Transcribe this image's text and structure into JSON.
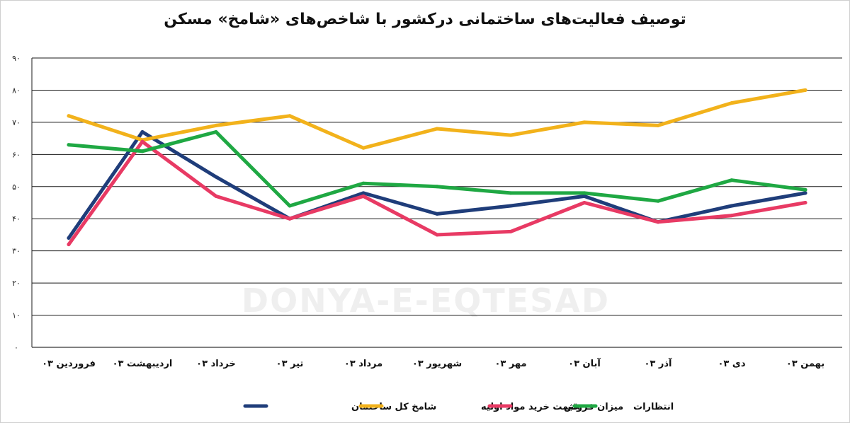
{
  "chart_data": {
    "type": "line",
    "title": "توصیف فعالیت‌های ساختمانی درکشور با شاخص‌های «شامخ» مسکن",
    "categories": [
      "فروردین ۰۳",
      "اردیبهشت ۰۳",
      "خرداد ۰۳",
      "تیر ۰۳",
      "مرداد ۰۳",
      "شهریور ۰۳",
      "مهر ۰۳",
      "آبان ۰۳",
      "آذر ۰۳",
      "دی ۰۳",
      "بهمن ۰۳"
    ],
    "ylim": [
      0,
      90
    ],
    "yticks": [
      0,
      10,
      20,
      30,
      40,
      50,
      60,
      70,
      80,
      90
    ],
    "ytick_labels": [
      "۰",
      "۱۰",
      "۲۰",
      "۳۰",
      "۴۰",
      "۵۰",
      "۶۰",
      "۷۰",
      "۸۰",
      "۹۰"
    ],
    "grid": true,
    "legend_position": "bottom",
    "series": [
      {
        "name": "شامخ کل ساختمان",
        "color": "#1f3d7a",
        "values": [
          34,
          67,
          53,
          40,
          48,
          41.5,
          44,
          47,
          39,
          44,
          48
        ]
      },
      {
        "name": "قیمت خرید مواد اولیه",
        "color": "#f2b21b",
        "values": [
          72,
          64.5,
          69,
          72,
          62,
          68,
          66,
          70,
          69,
          76,
          80
        ]
      },
      {
        "name": "میزان فروش",
        "color": "#e83a64",
        "values": [
          32,
          64,
          47,
          40,
          47,
          35,
          36,
          45,
          39,
          41,
          45
        ]
      },
      {
        "name": "انتظارات",
        "color": "#1fa843",
        "values": [
          63,
          61,
          67,
          44,
          51,
          50,
          48,
          48,
          45.5,
          52,
          49
        ]
      }
    ],
    "watermark": "DONYA-E-EQTESAD"
  }
}
